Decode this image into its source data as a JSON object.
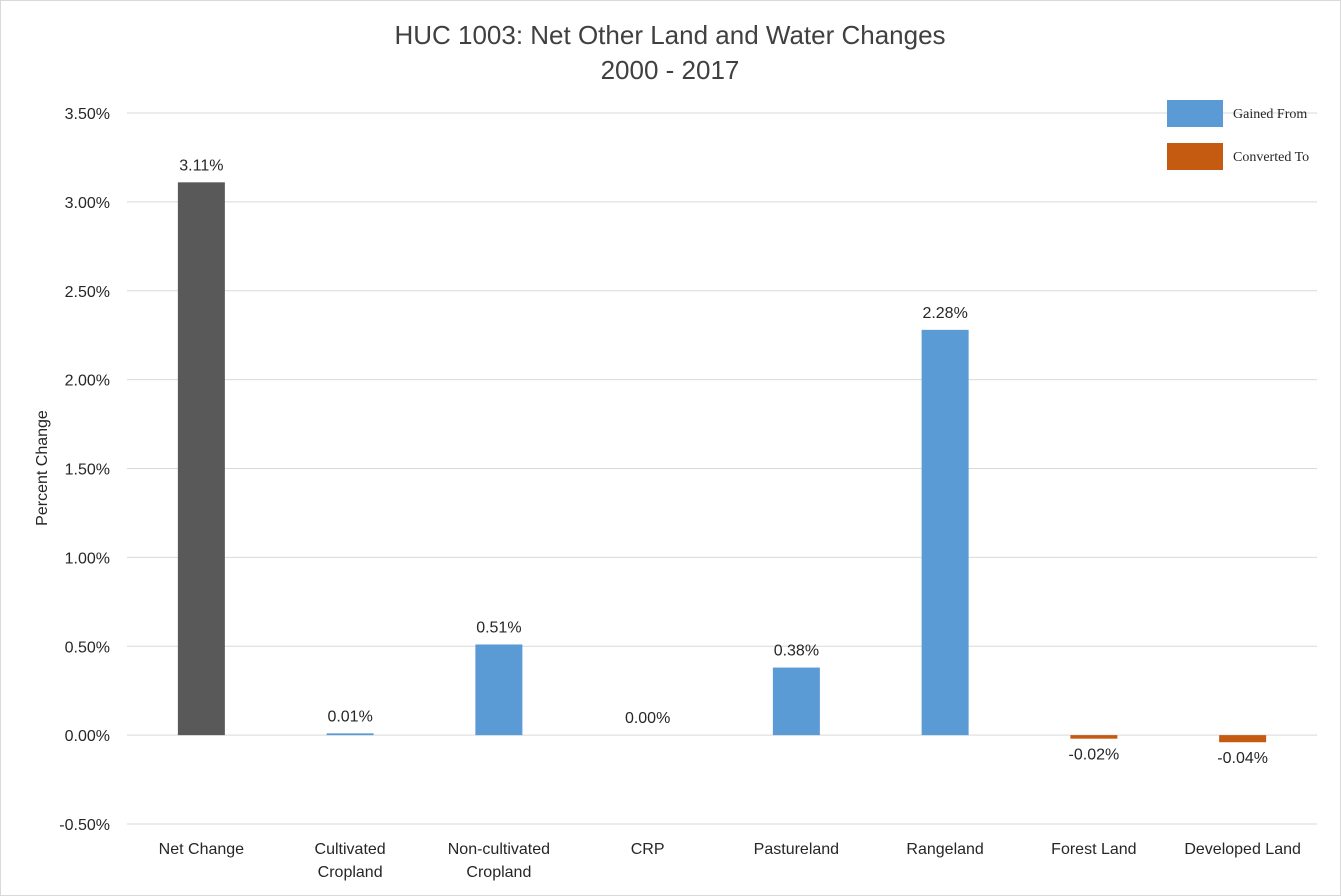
{
  "chart_data": {
    "type": "bar",
    "title": "HUC 1003: Net Other Land and Water Changes",
    "subtitle": "2000 - 2017",
    "xlabel": "",
    "ylabel": "Percent Change",
    "ylim": [
      -0.5,
      3.5
    ],
    "yticks": [
      "3.50%",
      "3.00%",
      "2.50%",
      "2.00%",
      "1.50%",
      "1.00%",
      "0.50%",
      "0.00%",
      "-0.50%"
    ],
    "ytick_values": [
      3.5,
      3.0,
      2.5,
      2.0,
      1.5,
      1.0,
      0.5,
      0.0,
      -0.5
    ],
    "grid": true,
    "legend_position": "top-right",
    "categories": [
      [
        "Net Change"
      ],
      [
        "Cultivated",
        "Cropland"
      ],
      [
        "Non-cultivated",
        "Cropland"
      ],
      [
        "CRP"
      ],
      [
        "Pastureland"
      ],
      [
        "Rangeland"
      ],
      [
        "Forest Land"
      ],
      [
        "Developed Land"
      ]
    ],
    "values": [
      3.11,
      0.01,
      0.51,
      0.0,
      0.38,
      2.28,
      -0.02,
      -0.04
    ],
    "data_labels": [
      "3.11%",
      "0.01%",
      "0.51%",
      "0.00%",
      "0.38%",
      "2.28%",
      "-0.02%",
      "-0.04%"
    ],
    "bar_colors": [
      "#595959",
      "#5b9bd5",
      "#5b9bd5",
      "#5b9bd5",
      "#5b9bd5",
      "#5b9bd5",
      "#c55a11",
      "#c55a11"
    ],
    "legend": [
      {
        "name": "Gained From",
        "color": "#5b9bd5"
      },
      {
        "name": "Converted To",
        "color": "#c55a11"
      }
    ]
  }
}
